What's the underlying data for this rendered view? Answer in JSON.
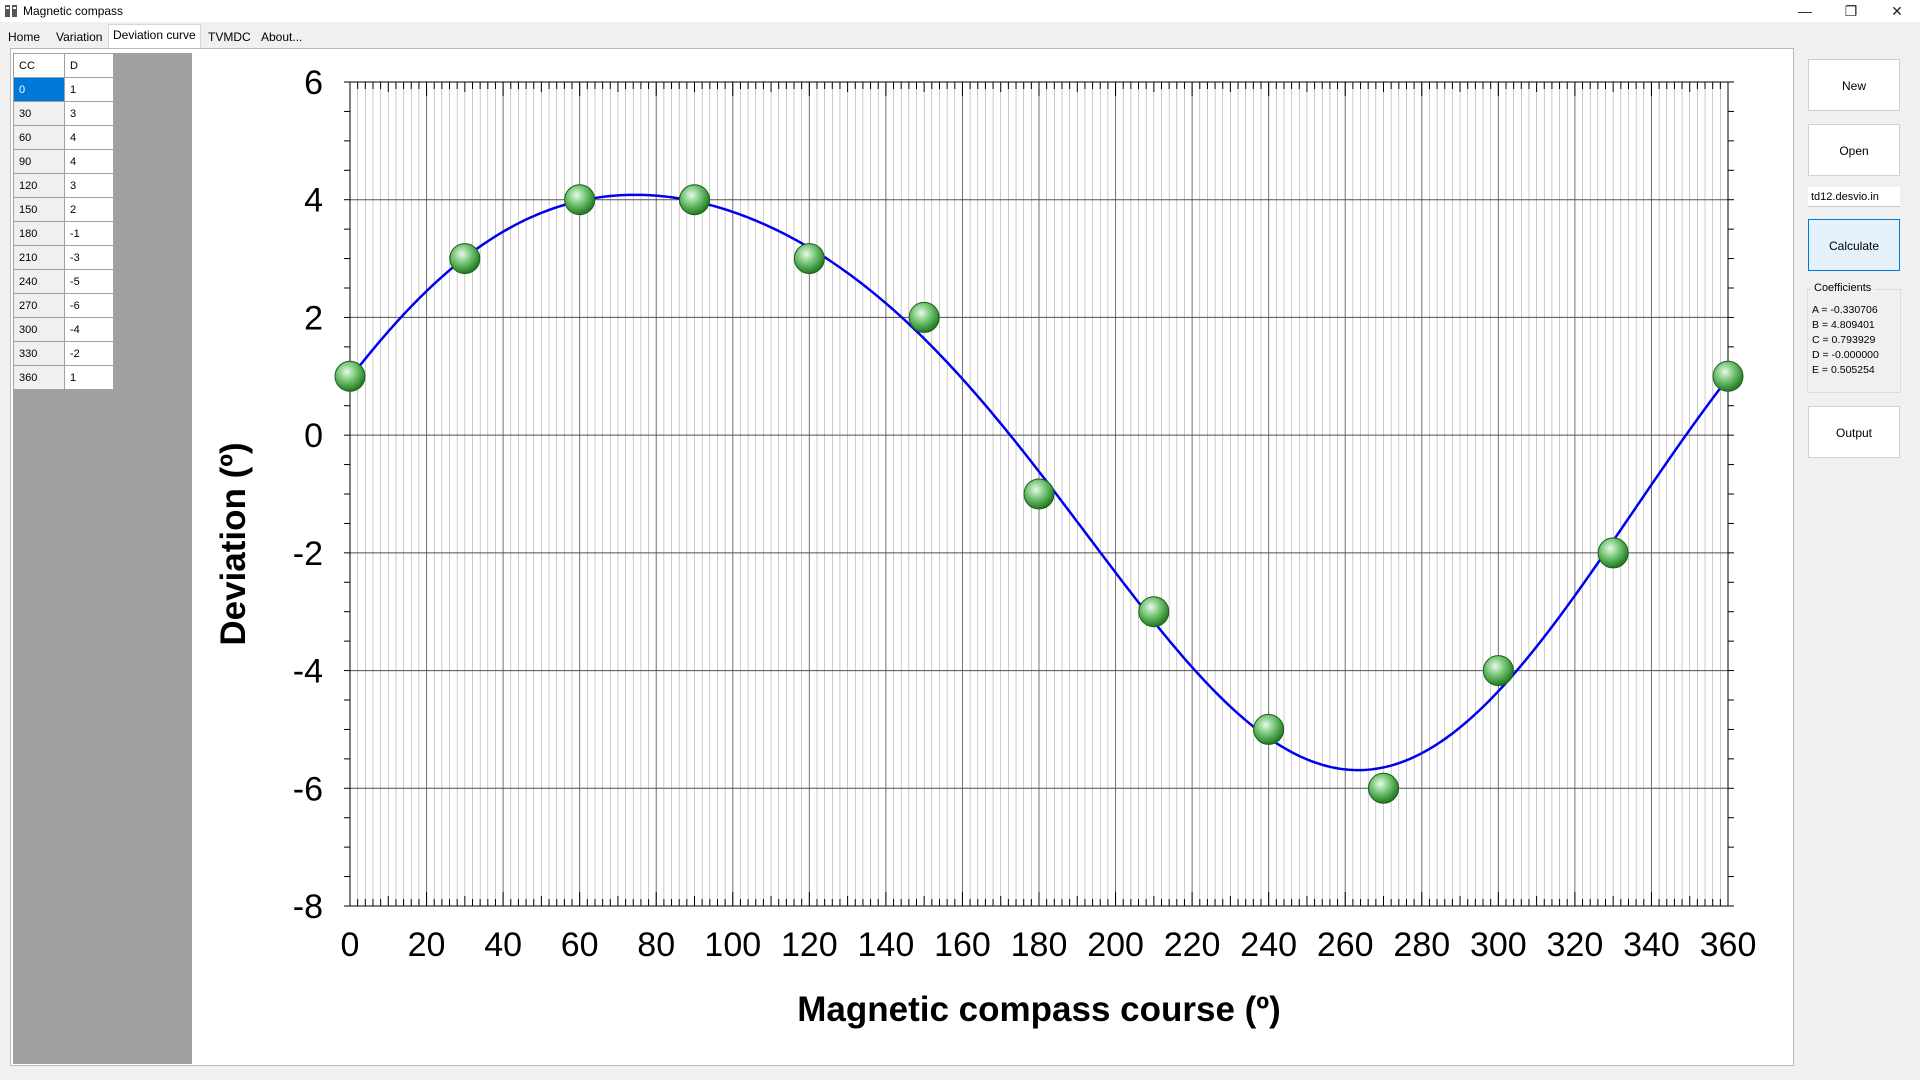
{
  "window": {
    "title": "Magnetic compass",
    "controls": [
      "—",
      "❐",
      "✕"
    ]
  },
  "tabs": [
    "Home",
    "Variation",
    "Deviation curve",
    "TVMDC",
    "About..."
  ],
  "active_tab": 2,
  "table": {
    "headers": [
      "CC",
      "D"
    ],
    "rows": [
      [
        "0",
        "1"
      ],
      [
        "30",
        "3"
      ],
      [
        "60",
        "4"
      ],
      [
        "90",
        "4"
      ],
      [
        "120",
        "3"
      ],
      [
        "150",
        "2"
      ],
      [
        "180",
        "-1"
      ],
      [
        "210",
        "-3"
      ],
      [
        "240",
        "-5"
      ],
      [
        "270",
        "-6"
      ],
      [
        "300",
        "-4"
      ],
      [
        "330",
        "-2"
      ],
      [
        "360",
        "1"
      ]
    ],
    "selected_row": 0
  },
  "buttons": {
    "new": "New",
    "open": "Open",
    "calculate": "Calculate",
    "output": "Output"
  },
  "file_name": "td12.desvio.in",
  "coefficients": {
    "legend": "Coefficients",
    "lines": [
      "A = -0.330706",
      "B = 4.809401",
      "C = 0.793929",
      "D = -0.000000",
      "E = 0.505254"
    ]
  },
  "chart_data": {
    "type": "scatter",
    "xlabel": "Magnetic compass course (º)",
    "ylabel": "Deviation (º)",
    "xlim": [
      0,
      360
    ],
    "ylim": [
      -8,
      6
    ],
    "x_ticks": [
      0,
      20,
      40,
      60,
      80,
      100,
      120,
      140,
      160,
      180,
      200,
      220,
      240,
      260,
      280,
      300,
      320,
      340,
      360
    ],
    "y_ticks": [
      6,
      4,
      2,
      0,
      -2,
      -4,
      -6,
      -8
    ],
    "grid": true,
    "points": {
      "x": [
        0,
        30,
        60,
        90,
        120,
        150,
        180,
        210,
        240,
        270,
        300,
        330,
        360
      ],
      "y": [
        1,
        3,
        4,
        4,
        3,
        2,
        -1,
        -3,
        -5,
        -6,
        -4,
        -2,
        1
      ]
    },
    "fit_coefficients": {
      "A": -0.330706,
      "B": 4.809401,
      "C": 0.793929,
      "D": -0.0,
      "E": 0.505254
    },
    "colors": {
      "curve": "#0000ee",
      "point": "#3aa03a",
      "grid": "#8c8c8c"
    }
  }
}
